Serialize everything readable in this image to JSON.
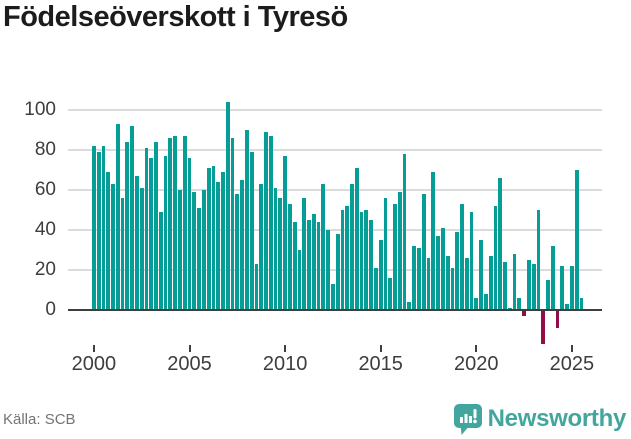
{
  "title": "Födelseöverskott i Tyresö",
  "source": "Källa: SCB",
  "branding": {
    "wordmark": "Newsworthy"
  },
  "colors": {
    "bar_positive": "#069d96",
    "bar_negative": "#920d46",
    "grid": "#dbdbdb",
    "axis": "#3e3e3e",
    "title_text": "#1c1c1c",
    "tick_text": "#3d3d3d",
    "source_text": "#747474",
    "brand_teal": "#43a69e"
  },
  "chart_data": {
    "type": "bar",
    "title": "Födelseöverskott i Tyresö",
    "series_name": "Födelseöverskott",
    "frequency": "quarterly",
    "start_period": "2000 Q1",
    "x_tick_labels": [
      "2000",
      "2005",
      "2010",
      "2015",
      "2020",
      "2025"
    ],
    "x_tick_bar_indices": [
      0,
      20,
      40,
      60,
      80,
      100
    ],
    "y_ticks": [
      0,
      20,
      40,
      60,
      80,
      100
    ],
    "ylim": [
      -20,
      105
    ],
    "grid": "horizontal",
    "legend": false,
    "values": [
      82,
      79,
      82,
      69,
      63,
      93,
      56,
      84,
      92,
      67,
      61,
      81,
      76,
      84,
      49,
      77,
      86,
      87,
      60,
      87,
      76,
      59,
      51,
      60,
      71,
      72,
      64,
      69,
      104,
      86,
      58,
      65,
      90,
      79,
      23,
      63,
      89,
      87,
      61,
      56,
      77,
      53,
      44,
      30,
      56,
      45,
      48,
      44,
      63,
      40,
      13,
      38,
      50,
      52,
      63,
      71,
      49,
      50,
      45,
      21,
      35,
      56,
      16,
      53,
      59,
      78,
      4,
      32,
      31,
      58,
      26,
      69,
      37,
      41,
      27,
      21,
      39,
      53,
      26,
      49,
      6,
      35,
      8,
      27,
      52,
      66,
      24,
      1,
      28,
      6,
      -3,
      25,
      23,
      50,
      -17,
      15,
      32,
      -9,
      22,
      3,
      22,
      70,
      6
    ]
  }
}
